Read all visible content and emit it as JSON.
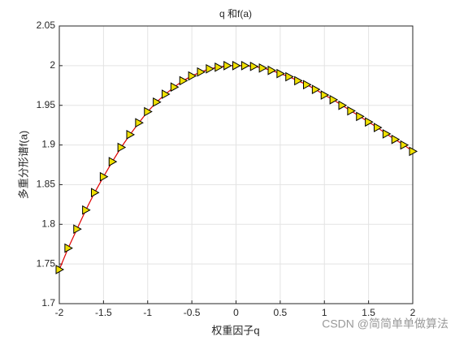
{
  "chart_data": {
    "type": "line",
    "title": "q 和f(a)",
    "xlabel": "权重因子q",
    "ylabel": "多重分形谱f(a)",
    "x": [
      -2,
      -1.9,
      -1.8,
      -1.7,
      -1.6,
      -1.5,
      -1.4,
      -1.3,
      -1.2,
      -1.1,
      -1,
      -0.9,
      -0.8,
      -0.7,
      -0.6,
      -0.5,
      -0.4,
      -0.3,
      -0.2,
      -0.1,
      0,
      0.1,
      0.2,
      0.3,
      0.4,
      0.5,
      0.6,
      0.7,
      0.8,
      0.9,
      1,
      1.1,
      1.2,
      1.3,
      1.4,
      1.5,
      1.6,
      1.7,
      1.8,
      1.9,
      2
    ],
    "series": [
      {
        "color": "#e00000",
        "marker_color": "#f0e000",
        "values": [
          1.743,
          1.77,
          1.794,
          1.818,
          1.84,
          1.86,
          1.879,
          1.897,
          1.913,
          1.928,
          1.942,
          1.954,
          1.964,
          1.973,
          1.981,
          1.987,
          1.992,
          1.996,
          1.998,
          2.0,
          2.0,
          2.0,
          1.999,
          1.997,
          1.994,
          1.99,
          1.986,
          1.981,
          1.976,
          1.97,
          1.963,
          1.957,
          1.95,
          1.943,
          1.936,
          1.929,
          1.922,
          1.914,
          1.907,
          1.9,
          1.892
        ]
      }
    ],
    "xlim": [
      -2,
      2
    ],
    "xticks": [
      -2,
      -1.5,
      -1,
      -0.5,
      0,
      0.5,
      1,
      1.5,
      2
    ],
    "ylim": [
      1.7,
      2.05
    ],
    "yticks": [
      1.7,
      1.75,
      1.8,
      1.85,
      1.9,
      1.95,
      2,
      2.05
    ],
    "grid": true,
    "watermark": "CSDN @简简单单做算法"
  }
}
